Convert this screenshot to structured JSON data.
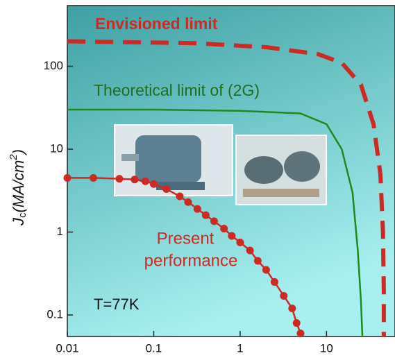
{
  "chart_data": {
    "type": "line",
    "y_label_parts": [
      "J",
      "c",
      "(MA/cm",
      "2",
      ")"
    ],
    "log_x": true,
    "log_y": true,
    "xlim": [
      0.01,
      62
    ],
    "ylim": [
      0.055,
      540
    ],
    "xticks": [
      0.01,
      0.1,
      1,
      10
    ],
    "yticks": [
      0.1,
      1,
      10,
      100
    ],
    "series": [
      {
        "name": "Envisioned limit",
        "color": "#cc2a22",
        "dashed": true,
        "markers": false,
        "x": [
          0.01,
          0.3,
          2,
          8,
          15,
          25,
          35,
          42,
          45,
          46,
          46
        ],
        "values": [
          200,
          190,
          170,
          140,
          110,
          60,
          20,
          5,
          1,
          0.2,
          0.055
        ]
      },
      {
        "name": "Theoretical limit of (2G)",
        "color": "#1e8a1e",
        "dashed": false,
        "markers": false,
        "x": [
          0.01,
          0.1,
          1,
          5,
          10,
          15,
          20,
          23,
          25,
          26
        ],
        "values": [
          30,
          30,
          29,
          27,
          20,
          10,
          3,
          0.6,
          0.15,
          0.055
        ]
      },
      {
        "color": "#cc2a22",
        "dashed": false,
        "markers": true,
        "x": [
          0.01,
          0.02,
          0.04,
          0.06,
          0.08,
          0.1,
          0.14,
          0.2,
          0.25,
          0.32,
          0.4,
          0.5,
          0.65,
          0.8,
          1,
          1.3,
          1.6,
          2,
          2.5,
          3.2,
          4,
          4.5,
          5
        ],
        "values": [
          4.5,
          4.5,
          4.4,
          4.3,
          4.1,
          3.8,
          3.3,
          2.7,
          2.3,
          1.9,
          1.6,
          1.35,
          1.1,
          0.9,
          0.75,
          0.6,
          0.45,
          0.35,
          0.25,
          0.17,
          0.12,
          0.08,
          0.06
        ]
      }
    ],
    "annotations": [
      "Present",
      "performance",
      "T=77K"
    ]
  }
}
